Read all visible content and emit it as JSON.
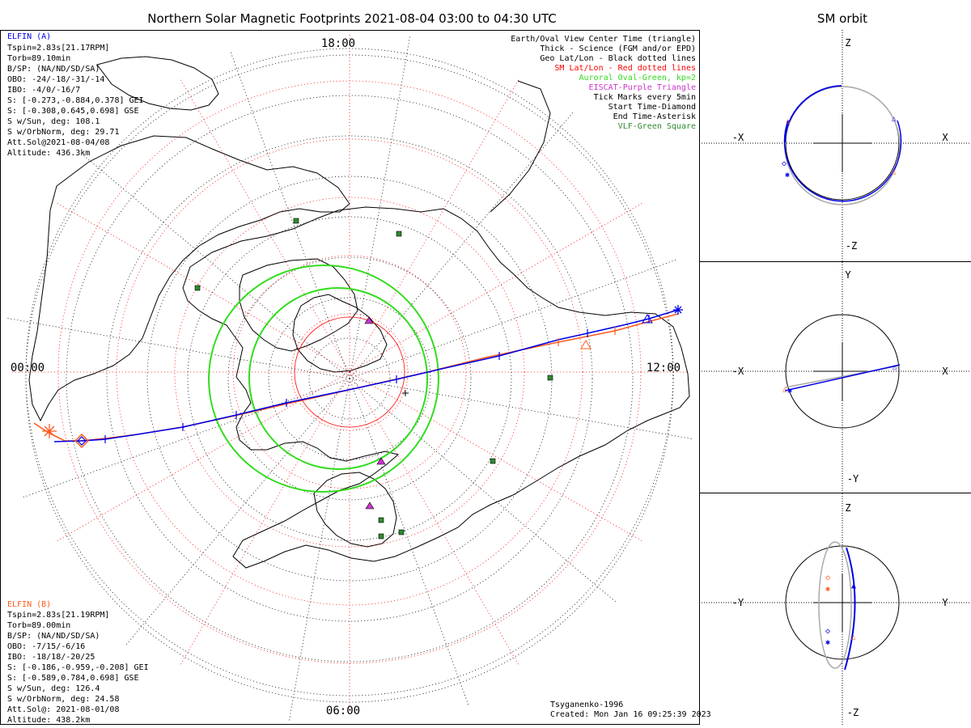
{
  "title": "Northern Solar Magnetic Footprints 2021-08-04 03:00 to 04:30 UTC",
  "orbit_title": "SM orbit",
  "colors": {
    "elfin_a": "#0000e6",
    "elfin_b": "#ff5a1e",
    "oval": "#32dc1e",
    "sm_grid": "#ff0000",
    "eiscat": "#cc33cc",
    "vlf": "#2e8b2e",
    "orbit_grey": "#aaaaaa",
    "geo_grid": "#000000"
  },
  "time_labels": {
    "top": "18:00",
    "left": "00:00",
    "right": "12:00",
    "bottom": "06:00"
  },
  "elfin_a": {
    "title": "ELFIN (A)",
    "lines": [
      "Tspin=2.83s[21.17RPM]",
      "Torb=89.10min",
      "B/SP: (NA/ND/SD/SA)",
      "OBO: -24/-18/-31/-14",
      "IBO: -4/0/-16/7",
      "S: [-0.273,-0.884,0.378] GEI",
      "S: [-0.308,0.645,0.698] GSE",
      "S w/Sun, deg: 108.1",
      "S w/OrbNorm, deg: 29.71",
      "Att.Sol@2021-08-04/08",
      "Altitude: 436.3km"
    ]
  },
  "elfin_b": {
    "title": "ELFIN (B)",
    "lines": [
      "Tspin=2.83s[21.19RPM]",
      "Torb=89.00min",
      "B/SP: (NA/ND/SD/SA)",
      "OBO: -7/15/-6/16",
      "IBO: -18/18/-20/25",
      "S: [-0.186,-0.959,-0.208] GEI",
      "S: [-0.589,0.784,0.698] GSE",
      "S w/Sun, deg: 126.4",
      "S w/OrbNorm, deg: 24.58",
      "Att.Sol@: 2021-08-01/08",
      "Altitude: 438.2km"
    ]
  },
  "legend": [
    {
      "text": "Earth/Oval View Center Time (triangle)",
      "color": "#000000"
    },
    {
      "text": "Thick - Science (FGM and/or EPD)",
      "color": "#000000"
    },
    {
      "text": "Geo Lat/Lon - Black dotted lines",
      "color": "#000000"
    },
    {
      "text": "SM Lat/Lon - Red dotted lines",
      "color": "#ff0000"
    },
    {
      "text": "Auroral Oval-Green, kp=2",
      "color": "#32dc1e"
    },
    {
      "text": "EISCAT-Purple Triangle",
      "color": "#cc33cc"
    },
    {
      "text": "Tick Marks every 5min",
      "color": "#000000"
    },
    {
      "text": "Start Time-Diamond",
      "color": "#000000"
    },
    {
      "text": "End Time-Asterisk",
      "color": "#000000"
    },
    {
      "text": "VLF-Green Square",
      "color": "#2e8b2e"
    }
  ],
  "footer": {
    "model": "Tsyganenko-1996",
    "created": "Created: Mon Jan 16 09:25:39 2023"
  },
  "orbit_panels": [
    {
      "h_neg": "-X",
      "h_pos": "X",
      "v_pos": "Z",
      "v_neg": "-Z"
    },
    {
      "h_neg": "-X",
      "h_pos": "X",
      "v_pos": "Y",
      "v_neg": "-Y"
    },
    {
      "h_neg": "-Y",
      "h_pos": "Y",
      "v_pos": "Z",
      "v_neg": "-Z"
    }
  ],
  "vlf_stations_count": 8
}
